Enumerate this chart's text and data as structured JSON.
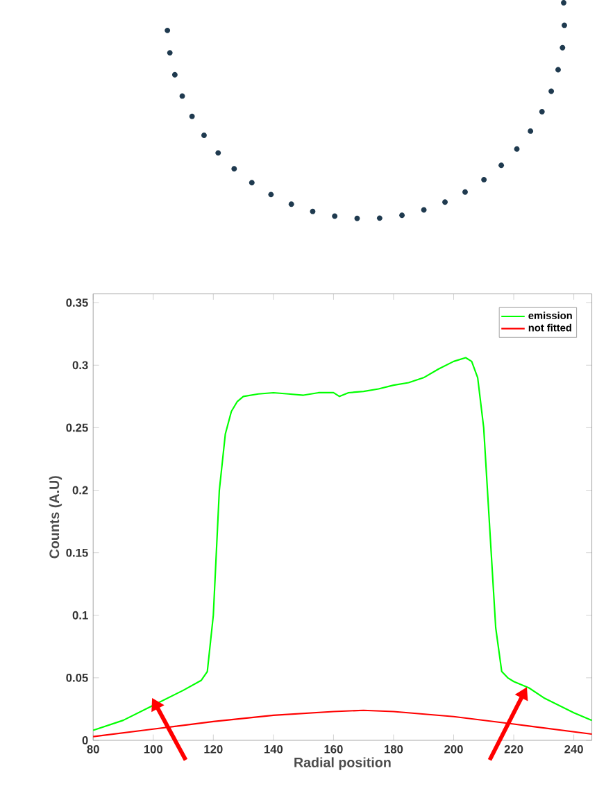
{
  "chart_data": {
    "type": "line",
    "xlabel": "Radial position",
    "ylabel": "Counts (A.U)",
    "xlim": [
      80,
      246
    ],
    "ylim": [
      0,
      0.357
    ],
    "xticks": [
      80,
      100,
      120,
      140,
      160,
      180,
      200,
      220,
      240
    ],
    "yticks": [
      0,
      0.05,
      0.1,
      0.15,
      0.2,
      0.25,
      0.3,
      0.35
    ],
    "legend": "top right",
    "series": [
      {
        "name": "emission",
        "color": "#00ff00",
        "x": [
          80,
          90,
          100,
          110,
          116,
          118,
          120,
          122,
          124,
          126,
          128,
          130,
          135,
          140,
          145,
          150,
          155,
          160,
          162,
          165,
          170,
          175,
          180,
          185,
          190,
          195,
          200,
          204,
          206,
          208,
          210,
          212,
          214,
          216,
          218,
          220,
          225,
          230,
          240,
          246
        ],
        "values": [
          0.008,
          0.016,
          0.028,
          0.04,
          0.048,
          0.055,
          0.1,
          0.2,
          0.245,
          0.263,
          0.271,
          0.275,
          0.277,
          0.278,
          0.277,
          0.276,
          0.278,
          0.278,
          0.275,
          0.278,
          0.279,
          0.281,
          0.284,
          0.286,
          0.29,
          0.297,
          0.303,
          0.306,
          0.303,
          0.29,
          0.25,
          0.17,
          0.09,
          0.055,
          0.05,
          0.047,
          0.042,
          0.034,
          0.022,
          0.016
        ]
      },
      {
        "name": "not fitted",
        "color": "#ff0000",
        "x": [
          80,
          100,
          120,
          140,
          160,
          170,
          180,
          200,
          220,
          246
        ],
        "values": [
          0.003,
          0.009,
          0.015,
          0.02,
          0.023,
          0.024,
          0.023,
          0.019,
          0.013,
          0.005
        ]
      }
    ]
  }
}
